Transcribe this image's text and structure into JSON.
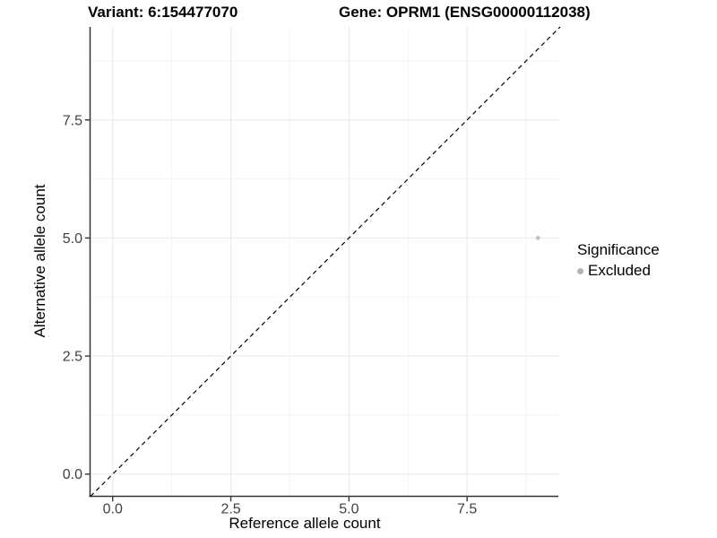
{
  "chart_data": {
    "type": "scatter",
    "title_left": "Variant: 6:154477070",
    "title_right": "Gene: OPRM1 (ENSG00000112038)",
    "xlabel": "Reference allele count",
    "ylabel": "Alternative allele count",
    "xlim": [
      -0.47,
      9.47
    ],
    "ylim": [
      -0.47,
      9.47
    ],
    "x_major_ticks": [
      0.0,
      2.5,
      5.0,
      7.5
    ],
    "y_major_ticks": [
      0.0,
      2.5,
      5.0,
      7.5
    ],
    "x_minor_ticks": [
      1.25,
      3.75,
      6.25,
      8.75
    ],
    "y_minor_ticks": [
      1.25,
      3.75,
      6.25,
      8.75
    ],
    "tick_decimals": 1,
    "grid": true,
    "points": [
      {
        "x": 9,
        "y": 5,
        "series": "Excluded"
      }
    ],
    "reference_line": {
      "kind": "identity",
      "style": "dashed",
      "color": "#000000"
    },
    "legend": {
      "title": "Significance",
      "position": "right",
      "entries": [
        {
          "label": "Excluded",
          "color": "#b3b3b3"
        }
      ]
    },
    "colors": {
      "point": "#bfbfbf",
      "grid_major": "#ebebeb",
      "grid_minor": "#f4f4f4",
      "axis_line": "#333333",
      "tick_mark": "#333333",
      "tick_label": "#404040"
    }
  }
}
